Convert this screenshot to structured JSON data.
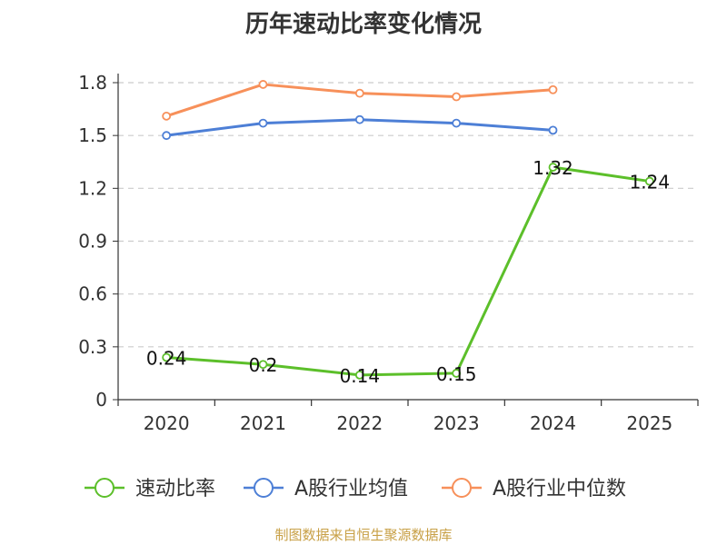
{
  "chart_data": {
    "type": "line",
    "title": "历年速动比率变化情况",
    "categories": [
      "2020",
      "2021",
      "2022",
      "2023",
      "2024",
      "2025"
    ],
    "ylim": [
      0,
      1.8
    ],
    "yticks": [
      "0",
      "0.3",
      "0.6",
      "0.9",
      "1.2",
      "1.5",
      "1.8"
    ],
    "grid": true,
    "legend_position": "bottom",
    "series": [
      {
        "name": "速动比率",
        "color": "#5cbf2a",
        "values": [
          0.24,
          0.2,
          0.14,
          0.15,
          1.32,
          1.24
        ],
        "labels": [
          "0.24",
          "0.2",
          "0.14",
          "0.15",
          "1.32",
          "1.24"
        ]
      },
      {
        "name": "A股行业均值",
        "color": "#4d7fd6",
        "values": [
          1.5,
          1.57,
          1.59,
          1.57,
          1.53,
          null
        ]
      },
      {
        "name": "A股行业中位数",
        "color": "#f7905a",
        "values": [
          1.61,
          1.79,
          1.74,
          1.72,
          1.76,
          null
        ]
      }
    ]
  },
  "footer": {
    "source": "制图数据来自恒生聚源数据库"
  }
}
